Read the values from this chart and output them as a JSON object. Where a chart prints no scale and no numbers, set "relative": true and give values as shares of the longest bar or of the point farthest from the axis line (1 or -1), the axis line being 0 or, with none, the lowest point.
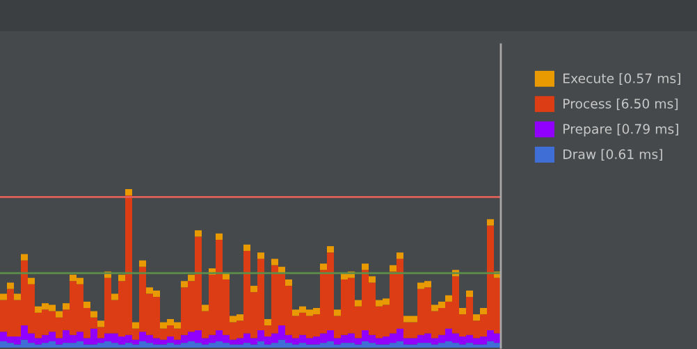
{
  "chart_data": {
    "type": "bar",
    "stacked": true,
    "relative": true,
    "legend": "right",
    "grid": false,
    "categories": [
      null,
      null,
      null,
      null,
      null,
      null,
      null,
      null,
      null,
      null,
      null,
      null,
      null,
      null,
      null,
      null,
      null,
      null,
      null,
      null,
      null,
      null,
      null,
      null,
      null,
      null,
      null,
      null,
      null,
      null,
      null,
      null,
      null,
      null,
      null,
      null,
      null,
      null,
      null,
      null,
      null,
      null,
      null,
      null,
      null,
      null,
      null,
      null,
      null,
      null,
      null,
      null,
      null,
      null,
      null,
      null,
      null,
      null,
      null,
      null,
      null,
      null,
      null,
      null,
      null,
      null,
      null,
      null,
      null,
      null,
      null,
      null
    ],
    "series": [
      {
        "name": "Draw [0.61 ms]",
        "color": "#3f6fd6",
        "values": [
          0.04,
          0.03,
          0.02,
          0.05,
          0.03,
          0.02,
          0.03,
          0.04,
          0.02,
          0.03,
          0.03,
          0.04,
          0.02,
          0.02,
          0.03,
          0.04,
          0.03,
          0.02,
          0.03,
          0.02,
          0.04,
          0.03,
          0.02,
          0.02,
          0.03,
          0.02,
          0.03,
          0.04,
          0.03,
          0.02,
          0.03,
          0.04,
          0.03,
          0.02,
          0.02,
          0.03,
          0.02,
          0.04,
          0.02,
          0.03,
          0.05,
          0.03,
          0.02,
          0.03,
          0.02,
          0.02,
          0.03,
          0.04,
          0.02,
          0.03,
          0.03,
          0.02,
          0.04,
          0.03,
          0.02,
          0.02,
          0.03,
          0.04,
          0.02,
          0.02,
          0.03,
          0.03,
          0.02,
          0.03,
          0.04,
          0.03,
          0.02,
          0.03,
          0.02,
          0.02,
          0.04,
          0.03
        ]
      },
      {
        "name": "Prepare [0.79 ms]",
        "color": "#9100ff",
        "values": [
          0.06,
          0.04,
          0.05,
          0.09,
          0.06,
          0.04,
          0.05,
          0.06,
          0.04,
          0.08,
          0.05,
          0.06,
          0.04,
          0.1,
          0.03,
          0.05,
          0.06,
          0.05,
          0.05,
          0.03,
          0.06,
          0.05,
          0.04,
          0.03,
          0.04,
          0.03,
          0.05,
          0.06,
          0.08,
          0.04,
          0.05,
          0.07,
          0.05,
          0.03,
          0.04,
          0.06,
          0.04,
          0.07,
          0.05,
          0.06,
          0.09,
          0.05,
          0.04,
          0.05,
          0.04,
          0.05,
          0.06,
          0.07,
          0.04,
          0.05,
          0.06,
          0.04,
          0.07,
          0.05,
          0.04,
          0.05,
          0.06,
          0.08,
          0.04,
          0.04,
          0.05,
          0.06,
          0.04,
          0.05,
          0.08,
          0.06,
          0.05,
          0.05,
          0.04,
          0.05,
          0.07,
          0.06
        ]
      },
      {
        "name": "Process [6.50 ms]",
        "color": "#dc3d15",
        "values": [
          0.2,
          0.3,
          0.23,
          0.41,
          0.31,
          0.16,
          0.16,
          0.13,
          0.13,
          0.13,
          0.34,
          0.3,
          0.19,
          0.07,
          0.07,
          0.35,
          0.21,
          0.35,
          0.88,
          0.07,
          0.41,
          0.26,
          0.26,
          0.07,
          0.07,
          0.07,
          0.3,
          0.32,
          0.59,
          0.17,
          0.38,
          0.57,
          0.35,
          0.11,
          0.11,
          0.52,
          0.29,
          0.45,
          0.07,
          0.43,
          0.33,
          0.31,
          0.14,
          0.14,
          0.14,
          0.14,
          0.4,
          0.49,
          0.14,
          0.35,
          0.35,
          0.2,
          0.38,
          0.33,
          0.2,
          0.2,
          0.39,
          0.44,
          0.1,
          0.1,
          0.29,
          0.29,
          0.17,
          0.17,
          0.17,
          0.36,
          0.14,
          0.24,
          0.11,
          0.14,
          0.66,
          0.35
        ]
      },
      {
        "name": "Execute [0.57 ms]",
        "color": "#e89a00",
        "values": [
          0.04,
          0.04,
          0.04,
          0.04,
          0.04,
          0.04,
          0.04,
          0.04,
          0.04,
          0.04,
          0.04,
          0.04,
          0.04,
          0.04,
          0.04,
          0.04,
          0.04,
          0.04,
          0.04,
          0.04,
          0.04,
          0.04,
          0.04,
          0.04,
          0.04,
          0.04,
          0.04,
          0.04,
          0.04,
          0.04,
          0.04,
          0.04,
          0.04,
          0.04,
          0.04,
          0.04,
          0.04,
          0.04,
          0.04,
          0.04,
          0.04,
          0.04,
          0.04,
          0.04,
          0.04,
          0.04,
          0.04,
          0.04,
          0.04,
          0.04,
          0.04,
          0.04,
          0.04,
          0.04,
          0.04,
          0.04,
          0.04,
          0.04,
          0.04,
          0.04,
          0.04,
          0.04,
          0.04,
          0.04,
          0.04,
          0.04,
          0.04,
          0.04,
          0.04,
          0.04,
          0.04,
          0.04
        ]
      }
    ],
    "ref_lines": [
      {
        "axis": "y",
        "value": 0.95,
        "color": "#e0605a"
      },
      {
        "axis": "y",
        "value": 0.47,
        "color": "#5c8f4a"
      }
    ]
  }
}
